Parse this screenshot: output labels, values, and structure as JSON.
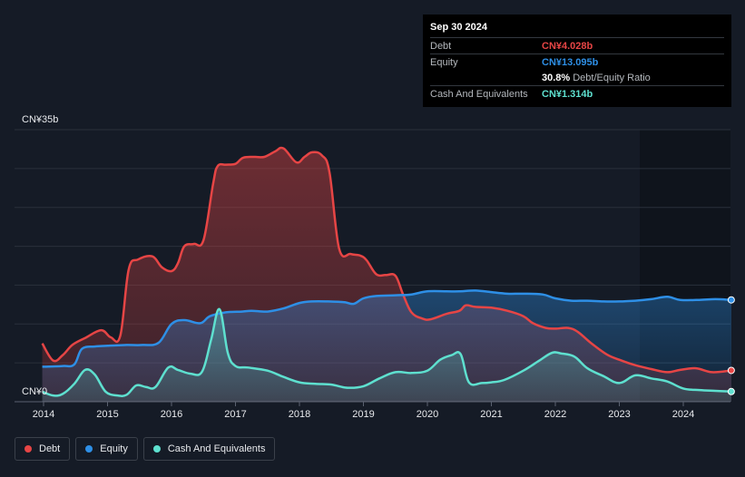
{
  "tooltip": {
    "date": "Sep 30 2024",
    "debt_label": "Debt",
    "debt_value": "CN¥4.028b",
    "equity_label": "Equity",
    "equity_value": "CN¥13.095b",
    "ratio_value": "30.8%",
    "ratio_label": "Debt/Equity Ratio",
    "cash_label": "Cash And Equivalents",
    "cash_value": "CN¥1.314b"
  },
  "legend": {
    "debt": "Debt",
    "equity": "Equity",
    "cash": "Cash And Equivalents"
  },
  "colors": {
    "debt": "#e64545",
    "equity": "#2e8fe6",
    "cash": "#5ee0cf"
  },
  "chart_data": {
    "type": "area",
    "ylim": [
      0,
      35
    ],
    "y_tick_labels": [
      "CN¥0",
      "CN¥35b"
    ],
    "x_tick_labels": [
      "2014",
      "2015",
      "2016",
      "2017",
      "2018",
      "2019",
      "2020",
      "2021",
      "2022",
      "2023",
      "2024"
    ],
    "grid": true,
    "legend_position": "bottom-left",
    "series": [
      {
        "name": "Debt",
        "points": [
          [
            2013.98,
            7.5
          ],
          [
            2014.15,
            5.3
          ],
          [
            2014.3,
            6.0
          ],
          [
            2014.45,
            7.3
          ],
          [
            2014.65,
            8.2
          ],
          [
            2014.9,
            9.2
          ],
          [
            2015.05,
            8.3
          ],
          [
            2015.2,
            8.5
          ],
          [
            2015.33,
            17.0
          ],
          [
            2015.48,
            18.3
          ],
          [
            2015.7,
            18.7
          ],
          [
            2015.85,
            17.3
          ],
          [
            2016.0,
            16.8
          ],
          [
            2016.1,
            17.8
          ],
          [
            2016.2,
            20.0
          ],
          [
            2016.35,
            20.3
          ],
          [
            2016.5,
            20.8
          ],
          [
            2016.65,
            28.0
          ],
          [
            2016.72,
            30.3
          ],
          [
            2016.85,
            30.5
          ],
          [
            2017.0,
            30.6
          ],
          [
            2017.12,
            31.4
          ],
          [
            2017.3,
            31.5
          ],
          [
            2017.45,
            31.5
          ],
          [
            2017.62,
            32.2
          ],
          [
            2017.75,
            32.6
          ],
          [
            2017.95,
            30.8
          ],
          [
            2018.08,
            31.5
          ],
          [
            2018.2,
            32.1
          ],
          [
            2018.35,
            31.7
          ],
          [
            2018.47,
            29.5
          ],
          [
            2018.62,
            19.7
          ],
          [
            2018.8,
            19.0
          ],
          [
            2018.95,
            18.8
          ],
          [
            2019.05,
            18.2
          ],
          [
            2019.2,
            16.4
          ],
          [
            2019.35,
            16.3
          ],
          [
            2019.5,
            16.2
          ],
          [
            2019.62,
            13.8
          ],
          [
            2019.75,
            11.5
          ],
          [
            2019.92,
            10.7
          ],
          [
            2020.05,
            10.6
          ],
          [
            2020.3,
            11.3
          ],
          [
            2020.5,
            11.7
          ],
          [
            2020.6,
            12.4
          ],
          [
            2020.75,
            12.2
          ],
          [
            2021.0,
            12.1
          ],
          [
            2021.25,
            11.7
          ],
          [
            2021.5,
            11.0
          ],
          [
            2021.65,
            10.1
          ],
          [
            2021.85,
            9.5
          ],
          [
            2022.0,
            9.4
          ],
          [
            2022.2,
            9.5
          ],
          [
            2022.35,
            9.0
          ],
          [
            2022.55,
            7.6
          ],
          [
            2022.8,
            6.1
          ],
          [
            2023.0,
            5.4
          ],
          [
            2023.25,
            4.7
          ],
          [
            2023.5,
            4.2
          ],
          [
            2023.75,
            3.8
          ],
          [
            2023.95,
            4.1
          ],
          [
            2024.2,
            4.3
          ],
          [
            2024.45,
            3.8
          ],
          [
            2024.75,
            4.03
          ]
        ]
      },
      {
        "name": "Equity",
        "points": [
          [
            2013.98,
            4.5
          ],
          [
            2014.3,
            4.6
          ],
          [
            2014.48,
            4.8
          ],
          [
            2014.6,
            6.8
          ],
          [
            2014.8,
            7.1
          ],
          [
            2015.0,
            7.2
          ],
          [
            2015.3,
            7.3
          ],
          [
            2015.55,
            7.3
          ],
          [
            2015.8,
            7.6
          ],
          [
            2016.0,
            10.0
          ],
          [
            2016.2,
            10.5
          ],
          [
            2016.45,
            10.1
          ],
          [
            2016.6,
            11.0
          ],
          [
            2016.85,
            11.5
          ],
          [
            2017.1,
            11.6
          ],
          [
            2017.25,
            11.7
          ],
          [
            2017.5,
            11.6
          ],
          [
            2017.75,
            12.0
          ],
          [
            2018.0,
            12.7
          ],
          [
            2018.2,
            12.9
          ],
          [
            2018.45,
            12.9
          ],
          [
            2018.7,
            12.8
          ],
          [
            2018.85,
            12.6
          ],
          [
            2019.0,
            13.3
          ],
          [
            2019.2,
            13.6
          ],
          [
            2019.5,
            13.7
          ],
          [
            2019.75,
            13.8
          ],
          [
            2020.0,
            14.2
          ],
          [
            2020.3,
            14.2
          ],
          [
            2020.5,
            14.2
          ],
          [
            2020.75,
            14.3
          ],
          [
            2021.0,
            14.1
          ],
          [
            2021.25,
            13.9
          ],
          [
            2021.5,
            13.9
          ],
          [
            2021.8,
            13.8
          ],
          [
            2022.0,
            13.3
          ],
          [
            2022.25,
            13.0
          ],
          [
            2022.5,
            13.0
          ],
          [
            2022.75,
            12.9
          ],
          [
            2023.0,
            12.9
          ],
          [
            2023.25,
            13.0
          ],
          [
            2023.5,
            13.2
          ],
          [
            2023.75,
            13.5
          ],
          [
            2023.95,
            13.1
          ],
          [
            2024.25,
            13.1
          ],
          [
            2024.5,
            13.2
          ],
          [
            2024.75,
            13.1
          ]
        ]
      },
      {
        "name": "Cash And Equivalents",
        "points": [
          [
            2013.98,
            1.3
          ],
          [
            2014.15,
            0.8
          ],
          [
            2014.3,
            1.0
          ],
          [
            2014.48,
            2.3
          ],
          [
            2014.65,
            4.1
          ],
          [
            2014.8,
            3.5
          ],
          [
            2014.97,
            1.3
          ],
          [
            2015.15,
            0.8
          ],
          [
            2015.3,
            0.9
          ],
          [
            2015.45,
            2.1
          ],
          [
            2015.6,
            1.9
          ],
          [
            2015.75,
            1.9
          ],
          [
            2015.95,
            4.4
          ],
          [
            2016.1,
            4.1
          ],
          [
            2016.3,
            3.6
          ],
          [
            2016.48,
            3.9
          ],
          [
            2016.62,
            8.0
          ],
          [
            2016.75,
            11.9
          ],
          [
            2016.88,
            6.3
          ],
          [
            2017.0,
            4.6
          ],
          [
            2017.2,
            4.4
          ],
          [
            2017.5,
            4.0
          ],
          [
            2017.75,
            3.2
          ],
          [
            2018.0,
            2.5
          ],
          [
            2018.25,
            2.3
          ],
          [
            2018.5,
            2.2
          ],
          [
            2018.75,
            1.8
          ],
          [
            2019.0,
            2.0
          ],
          [
            2019.25,
            3.0
          ],
          [
            2019.5,
            3.8
          ],
          [
            2019.75,
            3.7
          ],
          [
            2020.0,
            4.0
          ],
          [
            2020.2,
            5.4
          ],
          [
            2020.38,
            6.0
          ],
          [
            2020.52,
            6.1
          ],
          [
            2020.65,
            2.5
          ],
          [
            2020.85,
            2.4
          ],
          [
            2021.0,
            2.5
          ],
          [
            2021.2,
            2.8
          ],
          [
            2021.5,
            4.0
          ],
          [
            2021.75,
            5.3
          ],
          [
            2021.95,
            6.3
          ],
          [
            2022.1,
            6.2
          ],
          [
            2022.3,
            5.8
          ],
          [
            2022.5,
            4.3
          ],
          [
            2022.75,
            3.3
          ],
          [
            2023.0,
            2.4
          ],
          [
            2023.25,
            3.4
          ],
          [
            2023.5,
            3.0
          ],
          [
            2023.75,
            2.6
          ],
          [
            2024.0,
            1.7
          ],
          [
            2024.25,
            1.5
          ],
          [
            2024.5,
            1.4
          ],
          [
            2024.75,
            1.31
          ]
        ]
      }
    ]
  }
}
